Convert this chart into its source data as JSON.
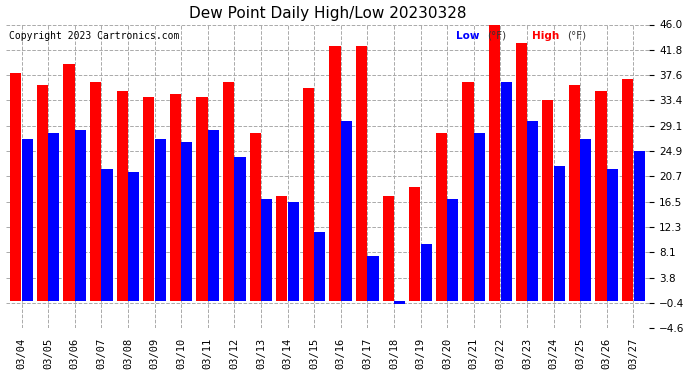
{
  "title": "Dew Point Daily High/Low 20230328",
  "copyright": "Copyright 2023 Cartronics.com",
  "legend_low": "Low",
  "legend_high": "High",
  "legend_unit": "(°F)",
  "dates": [
    "03/04",
    "03/05",
    "03/06",
    "03/07",
    "03/08",
    "03/09",
    "03/10",
    "03/11",
    "03/12",
    "03/13",
    "03/14",
    "03/15",
    "03/16",
    "03/17",
    "03/18",
    "03/19",
    "03/20",
    "03/21",
    "03/22",
    "03/23",
    "03/24",
    "03/25",
    "03/26",
    "03/27"
  ],
  "high_values": [
    38.0,
    36.0,
    39.5,
    36.5,
    35.0,
    34.0,
    34.5,
    34.0,
    36.5,
    28.0,
    17.5,
    35.5,
    42.5,
    42.5,
    17.5,
    19.0,
    28.0,
    36.5,
    46.0,
    43.0,
    33.5,
    36.0,
    35.0,
    37.0
  ],
  "low_values": [
    27.0,
    28.0,
    28.5,
    22.0,
    21.5,
    27.0,
    26.5,
    28.5,
    24.0,
    17.0,
    16.5,
    11.5,
    30.0,
    7.5,
    -0.5,
    9.5,
    17.0,
    28.0,
    36.5,
    30.0,
    22.5,
    27.0,
    22.0,
    25.0
  ],
  "high_color": "#ff0000",
  "low_color": "#0000ff",
  "bg_color": "#ffffff",
  "grid_color": "#aaaaaa",
  "title_color": "#000000",
  "ymin": -4.6,
  "ymax": 46.0,
  "yticks": [
    -4.6,
    -0.4,
    3.8,
    8.1,
    12.3,
    16.5,
    20.7,
    24.9,
    29.1,
    33.4,
    37.6,
    41.8,
    46.0
  ]
}
